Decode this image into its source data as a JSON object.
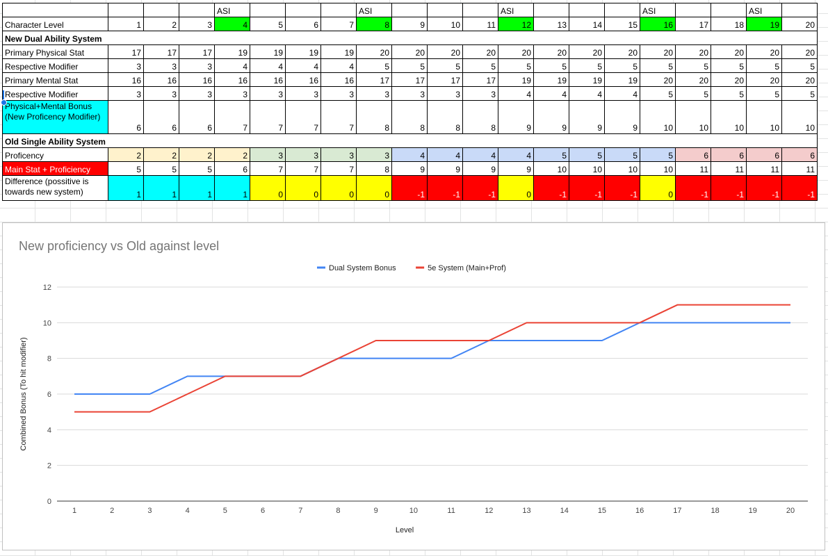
{
  "colors": {
    "asi_green": "#00ff00",
    "cyan": "#00ffff",
    "yellow": "#ffff00",
    "red": "#ff0000",
    "prof2": "#fff2cc",
    "prof3": "#d9ead3",
    "prof4": "#c9daf8",
    "prof5": "#c9daf8",
    "prof6": "#f4cccc",
    "line_dual": "#4285f4",
    "line_5e": "#ea4335"
  },
  "sheet": {
    "asi_label": "ASI",
    "asi_levels": [
      4,
      8,
      12,
      16,
      19
    ],
    "levels": [
      1,
      2,
      3,
      4,
      5,
      6,
      7,
      8,
      9,
      10,
      11,
      12,
      13,
      14,
      15,
      16,
      17,
      18,
      19,
      20
    ],
    "rows": {
      "character_level": "Character Level",
      "new_section": "New Dual Ability System",
      "primary_physical": {
        "label": "Primary Physical Stat",
        "values": [
          17,
          17,
          17,
          19,
          19,
          19,
          19,
          20,
          20,
          20,
          20,
          20,
          20,
          20,
          20,
          20,
          20,
          20,
          20,
          20
        ]
      },
      "physical_mod": {
        "label": "Respective Modifier",
        "values": [
          3,
          3,
          3,
          4,
          4,
          4,
          4,
          5,
          5,
          5,
          5,
          5,
          5,
          5,
          5,
          5,
          5,
          5,
          5,
          5
        ]
      },
      "primary_mental": {
        "label": "Primary Mental Stat",
        "values": [
          16,
          16,
          16,
          16,
          16,
          16,
          16,
          17,
          17,
          17,
          17,
          19,
          19,
          19,
          19,
          20,
          20,
          20,
          20,
          20
        ]
      },
      "mental_mod": {
        "label": "Respective Modifier",
        "values": [
          3,
          3,
          3,
          3,
          3,
          3,
          3,
          3,
          3,
          3,
          3,
          4,
          4,
          4,
          4,
          5,
          5,
          5,
          5,
          5
        ]
      },
      "new_bonus": {
        "label": "Physical+Mental Bonus (New Proficency Modifier)",
        "values": [
          6,
          6,
          6,
          7,
          7,
          7,
          7,
          8,
          8,
          8,
          8,
          9,
          9,
          9,
          9,
          10,
          10,
          10,
          10,
          10
        ]
      },
      "old_section": "Old Single Ability System",
      "proficiency": {
        "label": "Proficency",
        "values": [
          2,
          2,
          2,
          2,
          3,
          3,
          3,
          3,
          4,
          4,
          4,
          4,
          5,
          5,
          5,
          5,
          6,
          6,
          6,
          6
        ]
      },
      "main_plus_prof": {
        "label": "Main Stat + Proficiency",
        "values": [
          5,
          5,
          5,
          6,
          7,
          7,
          7,
          8,
          9,
          9,
          9,
          9,
          10,
          10,
          10,
          10,
          11,
          11,
          11,
          11
        ]
      },
      "difference": {
        "label": "Difference (possitive is towards new system)",
        "values": [
          1,
          1,
          1,
          1,
          0,
          0,
          0,
          0,
          -1,
          -1,
          -1,
          0,
          -1,
          -1,
          -1,
          0,
          -1,
          -1,
          -1,
          -1
        ]
      }
    }
  },
  "chart_data": {
    "type": "line",
    "title": "New proficiency vs Old against level",
    "xlabel": "Level",
    "ylabel": "Combined Bonus (To hit modifier)",
    "x": [
      1,
      2,
      3,
      4,
      5,
      6,
      7,
      8,
      9,
      10,
      11,
      12,
      13,
      14,
      15,
      16,
      17,
      18,
      19,
      20
    ],
    "ylim": [
      0,
      12
    ],
    "yticks": [
      0,
      2,
      4,
      6,
      8,
      10,
      12
    ],
    "grid": true,
    "legend_position": "top",
    "series": [
      {
        "name": "Dual System Bonus",
        "color": "#4285f4",
        "values": [
          6,
          6,
          6,
          7,
          7,
          7,
          7,
          8,
          8,
          8,
          8,
          9,
          9,
          9,
          9,
          10,
          10,
          10,
          10,
          10
        ]
      },
      {
        "name": "5e System (Main+Prof)",
        "color": "#ea4335",
        "values": [
          5,
          5,
          5,
          6,
          7,
          7,
          7,
          8,
          9,
          9,
          9,
          9,
          10,
          10,
          10,
          10,
          11,
          11,
          11,
          11
        ]
      }
    ]
  }
}
